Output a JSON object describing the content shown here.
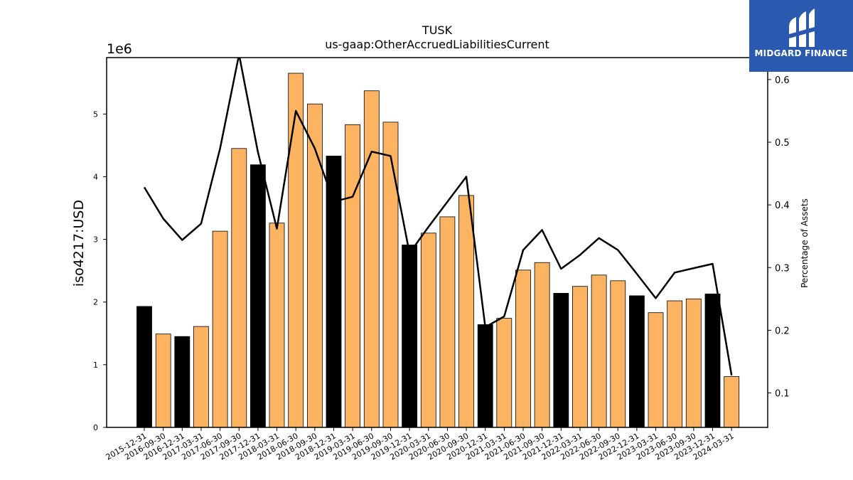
{
  "chart_data": {
    "type": "bar",
    "title": "TUSK",
    "subtitle": "us-gaap:OtherAccruedLiabilitiesCurrent",
    "ylabel": "iso4217:USD",
    "y_offset_label": "1e6",
    "y2label": "Percentage of Assets",
    "ylim": [
      0,
      5900000
    ],
    "y2lim": [
      0.045,
      0.635
    ],
    "yticks": [
      0,
      1000000,
      2000000,
      3000000,
      4000000,
      5000000
    ],
    "ytick_labels": [
      "0",
      "1",
      "2",
      "3",
      "4",
      "5"
    ],
    "y2ticks": [
      0.1,
      0.2,
      0.3,
      0.4,
      0.5,
      0.6
    ],
    "y2tick_labels": [
      "0.1",
      "0.2",
      "0.3",
      "0.4",
      "0.5",
      "0.6"
    ],
    "categories": [
      "2015-12-31",
      "2016-09-30",
      "2016-12-31",
      "2017-03-31",
      "2017-06-30",
      "2017-09-30",
      "2017-12-31",
      "2018-03-31",
      "2018-06-30",
      "2018-09-30",
      "2018-12-31",
      "2019-03-31",
      "2019-06-30",
      "2019-09-30",
      "2019-12-31",
      "2020-03-31",
      "2020-06-30",
      "2020-09-30",
      "2020-12-31",
      "2021-03-31",
      "2021-06-30",
      "2021-09-30",
      "2021-12-31",
      "2022-03-31",
      "2022-06-30",
      "2022-09-30",
      "2022-12-31",
      "2023-03-31",
      "2023-06-30",
      "2023-09-30",
      "2023-12-31",
      "2024-03-31"
    ],
    "series": [
      {
        "kind": "bar",
        "values": [
          1930000,
          1490000,
          1450000,
          1610000,
          3130000,
          4450000,
          4190000,
          3260000,
          5650000,
          5160000,
          4330000,
          4830000,
          5370000,
          4870000,
          2910000,
          3100000,
          3360000,
          3700000,
          1640000,
          1740000,
          2510000,
          2630000,
          2140000,
          2250000,
          2430000,
          2340000,
          2100000,
          1830000,
          2020000,
          2050000,
          2130000,
          810000
        ],
        "year_end_flags": [
          1,
          0,
          1,
          0,
          0,
          0,
          1,
          0,
          0,
          0,
          1,
          0,
          0,
          0,
          1,
          0,
          0,
          0,
          1,
          0,
          0,
          0,
          1,
          0,
          0,
          0,
          1,
          0,
          0,
          0,
          1,
          0
        ]
      },
      {
        "kind": "line",
        "axis": "right",
        "values": [
          0.428,
          0.378,
          0.344,
          0.37,
          0.49,
          0.64,
          0.484,
          0.362,
          0.55,
          0.49,
          0.405,
          0.413,
          0.485,
          0.478,
          0.323,
          0.365,
          0.405,
          0.445,
          0.205,
          0.222,
          0.328,
          0.36,
          0.298,
          0.32,
          0.347,
          0.328,
          0.29,
          0.251,
          0.292,
          0.299,
          0.306,
          0.128
        ]
      }
    ],
    "colors": {
      "year_end_bar": "#000000",
      "quarter_bar": "#fdb462",
      "line": "#000000"
    },
    "grid": false,
    "legend": "none"
  },
  "brand": {
    "name": "MIDGARD FINANCE",
    "icon": "midgard-logo-icon",
    "background": "#2b59b0"
  }
}
